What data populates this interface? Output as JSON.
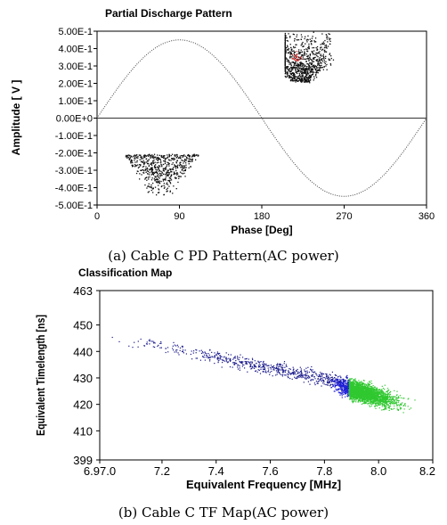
{
  "chart_data": [
    {
      "type": "scatter",
      "title": "Partial Discharge Pattern",
      "xlabel": "Phase [Deg]",
      "ylabel": "Amplitude [ V ]",
      "xlim": [
        0,
        360
      ],
      "ylim": [
        -0.5,
        0.5
      ],
      "xticks": [
        0,
        90,
        180,
        270,
        360
      ],
      "xtick_labels": [
        "0",
        "90",
        "180",
        "270",
        "360"
      ],
      "yticks": [
        0.5,
        0.4,
        0.3,
        0.2,
        0.1,
        0.0,
        -0.1,
        -0.2,
        -0.3,
        -0.4,
        -0.5
      ],
      "ytick_labels": [
        "5.00E-1",
        "4.00E-1",
        "3.00E-1",
        "2.00E-1",
        "1.00E-1",
        "0.00E+0",
        "-1.00E-1",
        "-2.00E-1",
        "-3.00E-1",
        "-4.00E-1",
        "-5.00E-1"
      ],
      "grid": false,
      "reference_curve": {
        "kind": "sine",
        "amplitude": 0.45,
        "period_deg": 360,
        "color": "#444444"
      },
      "zero_line": true,
      "series": [
        {
          "color": "#111111",
          "clusters": [
            {
              "x_range": [
                205,
                275
              ],
              "y_top": 0.5,
              "y_apex_x": 222,
              "y_bottom": 0.2,
              "count": 900,
              "shape": "triangle-down"
            },
            {
              "x_range": [
                25,
                110
              ],
              "y_top": -0.2,
              "y_apex_x": 70,
              "y_bottom": -0.47,
              "count": 600,
              "shape": "triangle-up"
            }
          ]
        },
        {
          "color": "#e03030",
          "clusters": [
            {
              "center": [
                217,
                0.35
              ],
              "spread": [
                6,
                0.03
              ],
              "count": 25
            }
          ]
        }
      ]
    },
    {
      "type": "scatter",
      "title": "Classification Map",
      "xlabel": "Equivalent Frequency [MHz]",
      "ylabel": "Equivalent Timelength [ns]",
      "xlim": [
        6.97,
        8.2
      ],
      "ylim": [
        399,
        463
      ],
      "xticks": [
        6.97,
        7.2,
        7.4,
        7.6,
        7.8,
        8.0,
        8.2
      ],
      "xtick_labels": [
        "6.97.0",
        "7.2",
        "7.4",
        "7.6",
        "7.8",
        "8.0",
        "8.2"
      ],
      "yticks": [
        463,
        450,
        440,
        430,
        420,
        410,
        399
      ],
      "ytick_labels": [
        "463",
        "450",
        "440",
        "430",
        "420",
        "410",
        "399"
      ],
      "grid": false,
      "series": [
        {
          "color": "#1a1a8c",
          "x_range": [
            7.0,
            7.89
          ],
          "trend": [
            [
              7.0,
              446
            ],
            [
              7.89,
              428
            ]
          ],
          "spread": 2.5,
          "count": 700
        },
        {
          "color": "#2020d8",
          "x_range": [
            7.82,
            7.89
          ],
          "trend": [
            [
              7.82,
              428
            ],
            [
              7.89,
              426
            ]
          ],
          "spread": 3,
          "count": 250
        },
        {
          "color": "#30c830",
          "x_range": [
            7.89,
            8.18
          ],
          "trend": [
            [
              7.89,
              426
            ],
            [
              8.18,
              418
            ]
          ],
          "spread": 3.5,
          "count": 2400
        }
      ]
    }
  ],
  "captions": {
    "a": "(a) Cable C PD Pattern(AC power)",
    "b": "(b) Cable C TF Map(AC power)"
  }
}
